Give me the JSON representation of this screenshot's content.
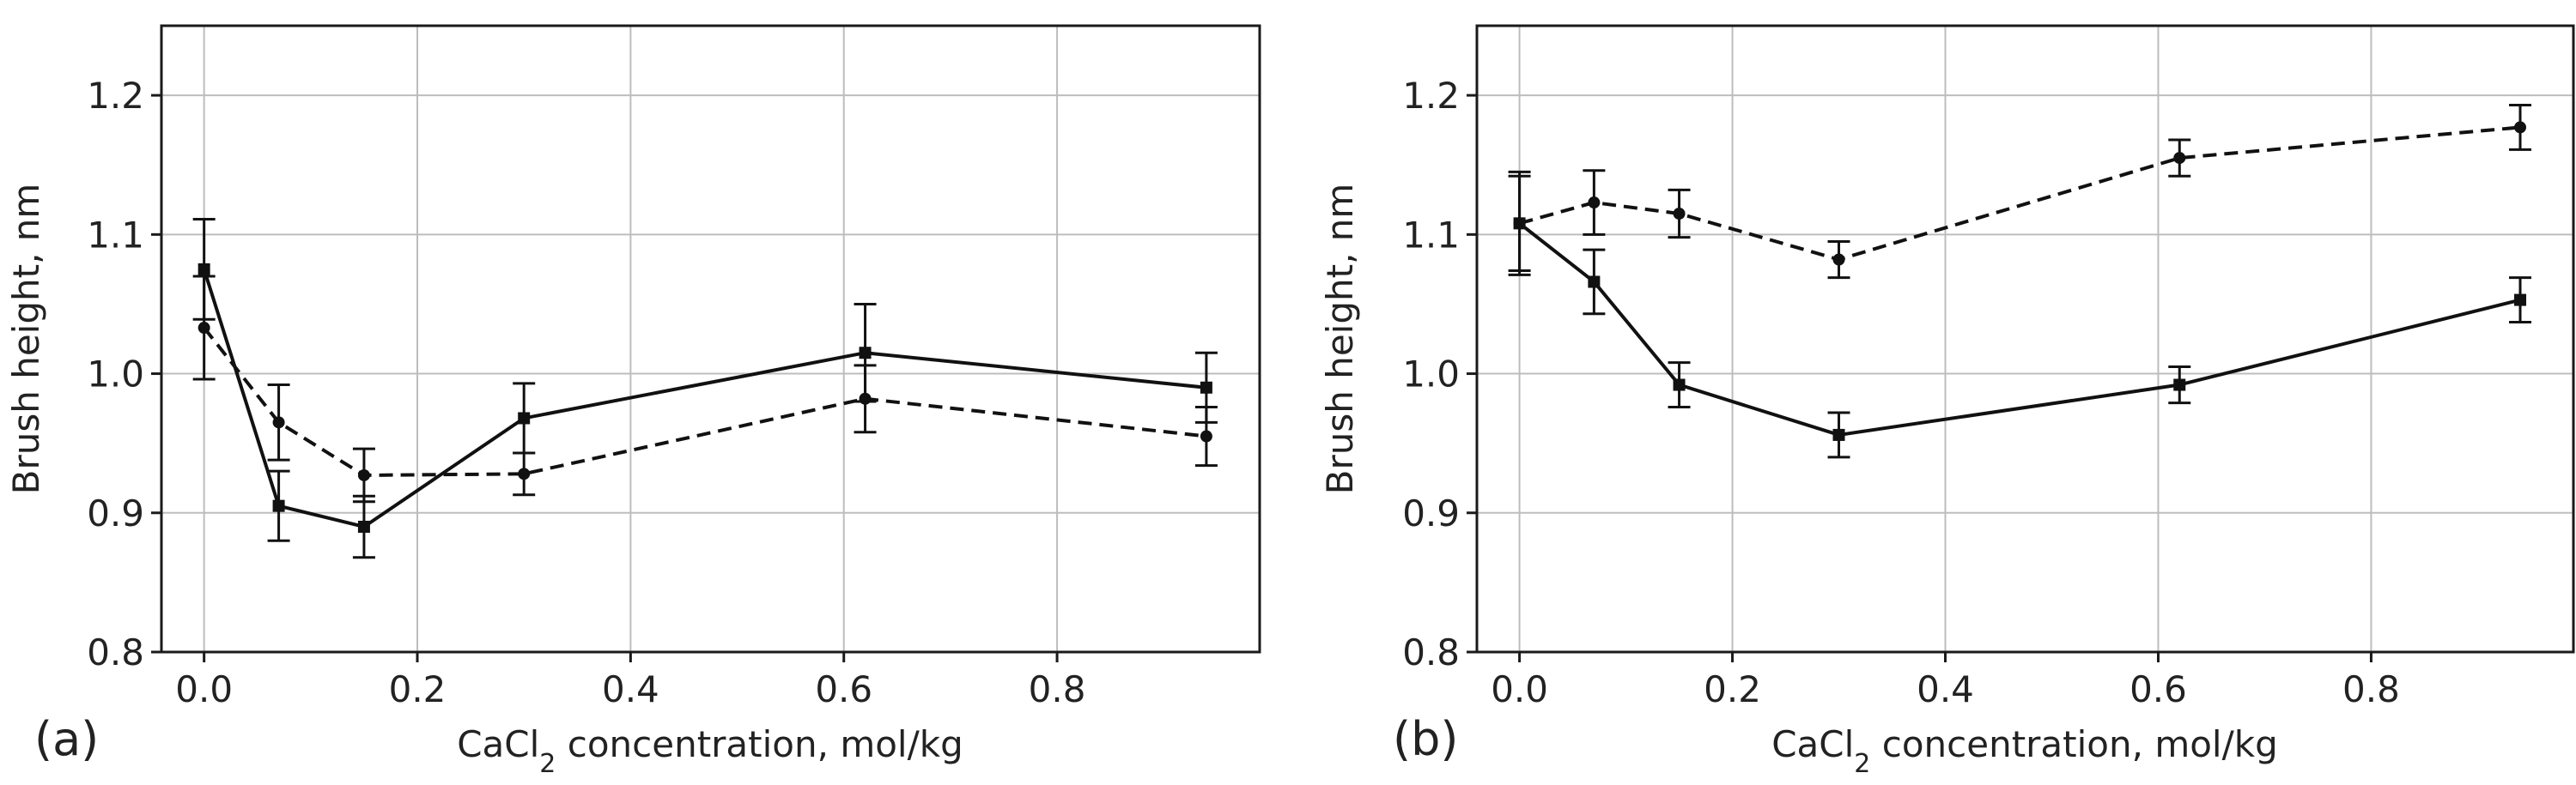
{
  "chart_data": [
    {
      "type": "line",
      "panel_label": "(a)",
      "xlabel": "CaCl₂ concentration, mol/kg",
      "ylabel": "Brush height, nm",
      "xlim": [
        -0.04,
        0.99
      ],
      "ylim": [
        0.8,
        1.25
      ],
      "xticks": [
        0.0,
        0.2,
        0.4,
        0.6,
        0.8
      ],
      "xtick_labels": [
        "0.0",
        "0.2",
        "0.4",
        "0.6",
        "0.8"
      ],
      "yticks": [
        0.8,
        0.9,
        1.0,
        1.1,
        1.2
      ],
      "ytick_labels": [
        "0.8",
        "0.9",
        "1.0",
        "1.1",
        "1.2"
      ],
      "grid": true,
      "series": [
        {
          "name": "solid",
          "line_style": "solid",
          "marker": "square",
          "color": "#111111",
          "x": [
            0.0,
            0.07,
            0.15,
            0.3,
            0.62,
            0.94
          ],
          "y": [
            1.075,
            0.905,
            0.89,
            0.968,
            1.015,
            0.99
          ],
          "err": [
            0.036,
            0.025,
            0.022,
            0.025,
            0.035,
            0.025
          ]
        },
        {
          "name": "dashed",
          "line_style": "dashed",
          "marker": "circle",
          "color": "#111111",
          "x": [
            0.0,
            0.07,
            0.15,
            0.3,
            0.62,
            0.94
          ],
          "y": [
            1.033,
            0.965,
            0.927,
            0.928,
            0.982,
            0.955
          ],
          "err": [
            0.037,
            0.027,
            0.019,
            0.015,
            0.024,
            0.021
          ]
        }
      ]
    },
    {
      "type": "line",
      "panel_label": "(b)",
      "xlabel": "CaCl₂ concentration, mol/kg",
      "ylabel": "Brush height, nm",
      "xlim": [
        -0.04,
        0.99
      ],
      "ylim": [
        0.8,
        1.25
      ],
      "xticks": [
        0.0,
        0.2,
        0.4,
        0.6,
        0.8
      ],
      "xtick_labels": [
        "0.0",
        "0.2",
        "0.4",
        "0.6",
        "0.8"
      ],
      "yticks": [
        0.8,
        0.9,
        1.0,
        1.1,
        1.2
      ],
      "ytick_labels": [
        "0.8",
        "0.9",
        "1.0",
        "1.1",
        "1.2"
      ],
      "grid": true,
      "series": [
        {
          "name": "solid",
          "line_style": "solid",
          "marker": "square",
          "color": "#111111",
          "x": [
            0.0,
            0.07,
            0.15,
            0.3,
            0.62,
            0.94
          ],
          "y": [
            1.108,
            1.066,
            0.992,
            0.956,
            0.992,
            1.053
          ],
          "err": [
            0.037,
            0.023,
            0.016,
            0.016,
            0.013,
            0.016
          ]
        },
        {
          "name": "dashed",
          "line_style": "dashed",
          "marker": "circle",
          "color": "#111111",
          "x": [
            0.0,
            0.07,
            0.15,
            0.3,
            0.62,
            0.94
          ],
          "y": [
            1.108,
            1.123,
            1.115,
            1.082,
            1.155,
            1.177
          ],
          "err": [
            0.034,
            0.023,
            0.017,
            0.013,
            0.013,
            0.016
          ]
        }
      ]
    }
  ]
}
